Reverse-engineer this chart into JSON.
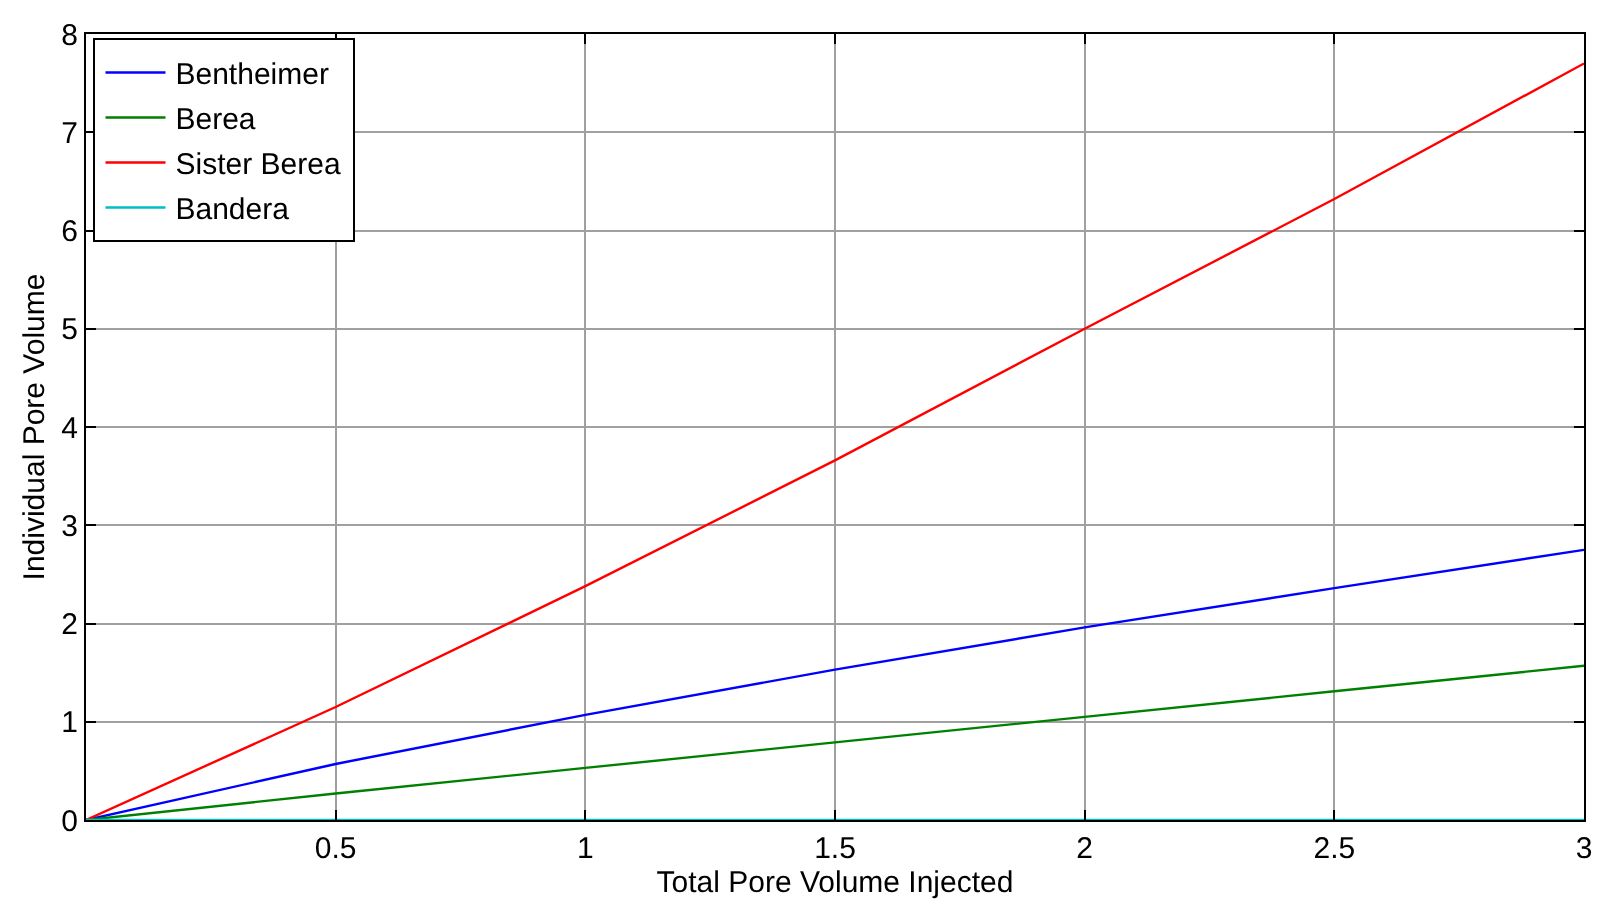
{
  "chart_data": {
    "type": "line",
    "xlabel": "Total Pore Volume Injected",
    "ylabel": "Individual Pore Volume",
    "x": [
      0,
      0.5,
      1,
      1.5,
      2,
      2.5,
      3
    ],
    "series": [
      {
        "name": "Bentheimer",
        "color": "#0000ff",
        "values": [
          0,
          0.57,
          1.07,
          1.53,
          1.96,
          2.36,
          2.75
        ]
      },
      {
        "name": "Berea",
        "color": "#008000",
        "values": [
          0,
          0.27,
          0.53,
          0.79,
          1.05,
          1.31,
          1.57
        ]
      },
      {
        "name": "Sister Berea",
        "color": "#ff0000",
        "values": [
          0,
          1.15,
          2.38,
          3.66,
          5.0,
          6.32,
          7.7
        ]
      },
      {
        "name": "Bandera",
        "color": "#00bfbf",
        "values": [
          0,
          0,
          0,
          0,
          0,
          0,
          0
        ]
      }
    ],
    "xlim": [
      0,
      3
    ],
    "xticks": [
      0.5,
      1,
      1.5,
      2,
      2.5,
      3
    ],
    "ylim": [
      0,
      8
    ],
    "yticks": [
      0,
      1,
      2,
      3,
      4,
      5,
      6,
      7,
      8
    ],
    "grid": true,
    "legend": "top left",
    "marker": "none",
    "line_style": "solid"
  }
}
